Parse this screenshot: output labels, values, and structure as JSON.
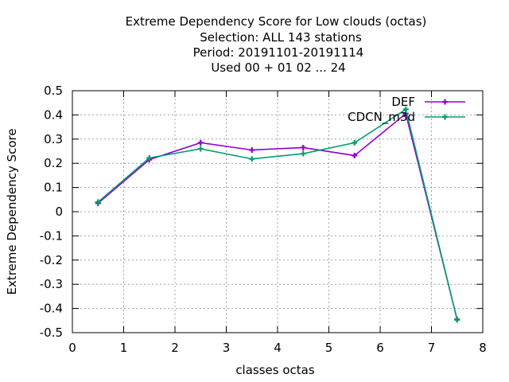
{
  "chart_data": {
    "type": "line",
    "title_lines": [
      "Extreme Dependency Score  for Low clouds (octas)",
      "Selection: ALL    143 stations",
      "Period: 20191101-20191114",
      "Used  00 + 01 02 ... 24"
    ],
    "xlabel": "classes octas",
    "ylabel": "Extreme Dependency Score",
    "xlim": [
      0,
      8
    ],
    "ylim": [
      -0.5,
      0.5
    ],
    "x_ticks": [
      0,
      1,
      2,
      3,
      4,
      5,
      6,
      7,
      8
    ],
    "x_tick_labels": [
      "0",
      "1",
      "2",
      "3",
      "4",
      "5",
      "6",
      "7",
      "8"
    ],
    "y_ticks": [
      -0.5,
      -0.4,
      -0.3,
      -0.2,
      -0.1,
      0,
      0.1,
      0.2,
      0.3,
      0.4,
      0.5
    ],
    "y_tick_labels": [
      "-0.5",
      "-0.4",
      "-0.3",
      "-0.2",
      "-0.1",
      "0",
      "0.1",
      "0.2",
      "0.3",
      "0.4",
      "0.5"
    ],
    "grid": true,
    "legend_position": "top-right",
    "x": [
      0.5,
      1.5,
      2.5,
      3.5,
      4.5,
      5.5,
      6.5,
      7.5
    ],
    "series": [
      {
        "name": "DEF",
        "color": "#9400d3",
        "values": [
          0.035,
          0.215,
          0.285,
          0.255,
          0.265,
          0.232,
          0.405,
          -0.445
        ]
      },
      {
        "name": "CDCN_m3d",
        "color": "#009e73",
        "values": [
          0.04,
          0.222,
          0.26,
          0.218,
          0.24,
          0.285,
          0.423,
          -0.447
        ]
      }
    ]
  }
}
